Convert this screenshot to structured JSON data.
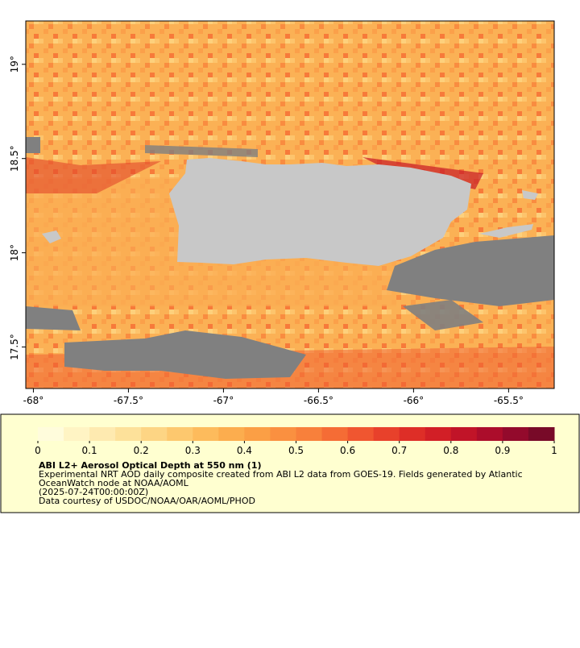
{
  "map": {
    "xlim": [
      -68.04,
      -65.26
    ],
    "ylim": [
      17.28,
      19.23
    ],
    "xticks": [
      {
        "value": -68,
        "label": "-68°"
      },
      {
        "value": -67.5,
        "label": "-67.5°"
      },
      {
        "value": -67,
        "label": "-67°"
      },
      {
        "value": -66.5,
        "label": "-66.5°"
      },
      {
        "value": -66,
        "label": "-66°"
      },
      {
        "value": -65.5,
        "label": "-65.5°"
      }
    ],
    "yticks": [
      {
        "value": 17.5,
        "label": "17.5°"
      },
      {
        "value": 18,
        "label": "18°"
      },
      {
        "value": 18.5,
        "label": "18.5°"
      },
      {
        "value": 19,
        "label": "19°"
      }
    ]
  },
  "colorbar": {
    "lim": [
      0,
      1
    ],
    "ticks": [
      0,
      0.1,
      0.2,
      0.3,
      0.4,
      0.5,
      0.6,
      0.7,
      0.8,
      0.9,
      1
    ],
    "colors": [
      "#fffcdc",
      "#fff4c4",
      "#feeab0",
      "#fde19a",
      "#fdd584",
      "#fdc86e",
      "#fdbb5c",
      "#fcad4e",
      "#fb9f45",
      "#fa9040",
      "#f8803b",
      "#f56c35",
      "#f05630",
      "#e8412b",
      "#de2e27",
      "#d21f26",
      "#c11428",
      "#ac0d2b",
      "#930a2c",
      "#780a28"
    ]
  },
  "legend": {
    "title": "ABI L2+ Aerosol Optical Depth at 550 nm (1)",
    "lines": [
      "Experimental NRT AOD daily composite created from ABI L2 data from GOES-19. Fields generated by Atlantic",
      "OceanWatch node at NOAA/AOML",
      "(2025-07-24T00:00:00Z)",
      "Data courtesy of USDOC/NOAA/OAR/AOML/PHOD"
    ]
  }
}
